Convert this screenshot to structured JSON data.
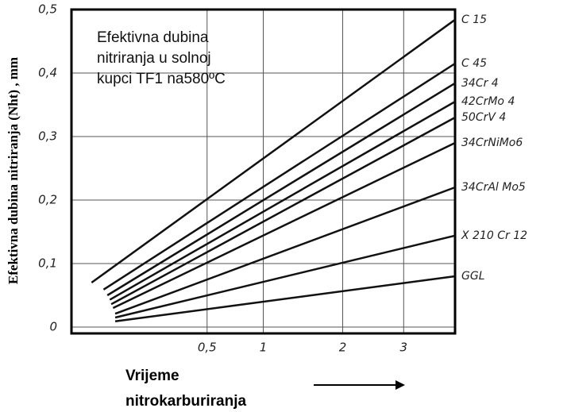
{
  "chart_data": {
    "type": "line",
    "annotation": [
      "Efektivna dubina",
      "nitriranja u solnoj",
      "kupci TF1 na580ºC"
    ],
    "y_label": "Efektivna dubina nitriranja (Nht) , mm",
    "x_label": [
      "Vrijeme",
      "nitrokarburiranja"
    ],
    "xlim": [
      0,
      4
    ],
    "xscale": "sqrt",
    "xticks": [
      {
        "value": 0.5,
        "label": "0,5"
      },
      1,
      2,
      3
    ],
    "ylim": [
      -0.01,
      0.5
    ],
    "yticks": [
      0,
      {
        "value": 0.1,
        "label": "0,1"
      },
      {
        "value": 0.2,
        "label": "0,2"
      },
      {
        "value": 0.3,
        "label": "0,3"
      },
      {
        "value": 0.4,
        "label": "0,4"
      },
      {
        "value": 0.5,
        "label": "0,5"
      }
    ],
    "grid": true,
    "series": [
      {
        "name": "C 15",
        "color": "#111",
        "x": [
          0.011,
          4
        ],
        "values": [
          0.07,
          0.484
        ]
      },
      {
        "name": "C 45",
        "color": "#111",
        "x": [
          0.028,
          4
        ],
        "values": [
          0.059,
          0.415
        ]
      },
      {
        "name": "34Cr 4",
        "color": "#111",
        "x": [
          0.035,
          4
        ],
        "values": [
          0.05,
          0.384
        ]
      },
      {
        "name": "42CrMo 4",
        "color": "#111",
        "x": [
          0.04,
          4
        ],
        "values": [
          0.043,
          0.355
        ]
      },
      {
        "name": "50CrV 4",
        "color": "#111",
        "x": [
          0.043,
          4
        ],
        "values": [
          0.036,
          0.33
        ]
      },
      {
        "name": "34CrNiMo6",
        "color": "#111",
        "x": [
          0.047,
          4
        ],
        "values": [
          0.03,
          0.29
        ]
      },
      {
        "name": "34CrAl Mo5",
        "color": "#111",
        "x": [
          0.052,
          4
        ],
        "values": [
          0.021,
          0.22
        ]
      },
      {
        "name": "X 210 Cr 12",
        "color": "#111",
        "x": [
          0.052,
          4
        ],
        "values": [
          0.015,
          0.144
        ]
      },
      {
        "name": "GGL",
        "color": "#111",
        "x": [
          0.052,
          4
        ],
        "values": [
          0.009,
          0.08
        ]
      }
    ]
  }
}
